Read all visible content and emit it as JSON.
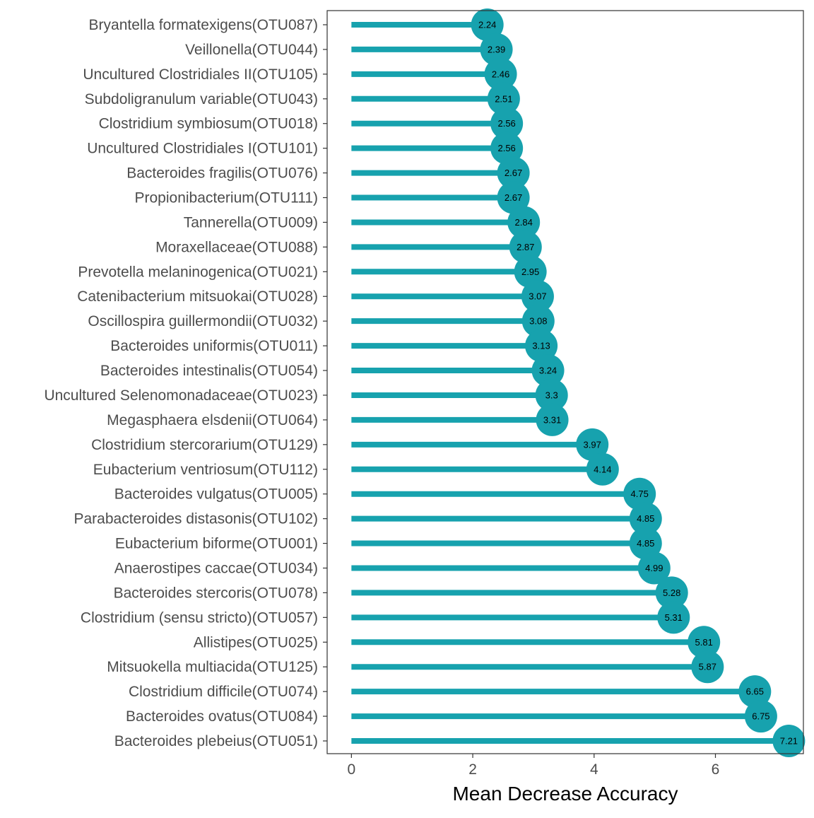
{
  "chart_data": {
    "type": "lollipop",
    "title": "",
    "xlabel": "Mean Decrease Accuracy",
    "ylabel": "",
    "xlim": [
      -0.4,
      7.45
    ],
    "x_ticks": [
      0,
      2,
      4,
      6
    ],
    "grid": false,
    "legend": "none",
    "colors": {
      "series": "#17A2AE",
      "label_text": "#000000",
      "axis_text": "#4D4D4D",
      "axis_title": "#000000",
      "panel_border": "#333333"
    },
    "categories": [
      "Bryantella formatexigens(OTU087)",
      "Veillonella(OTU044)",
      "Uncultured Clostridiales II(OTU105)",
      "Subdoligranulum variable(OTU043)",
      "Clostridium symbiosum(OTU018)",
      "Uncultured Clostridiales I(OTU101)",
      "Bacteroides fragilis(OTU076)",
      "Propionibacterium(OTU111)",
      "Tannerella(OTU009)",
      "Moraxellaceae(OTU088)",
      "Prevotella melaninogenica(OTU021)",
      "Catenibacterium mitsuokai(OTU028)",
      "Oscillospira guillermondii(OTU032)",
      "Bacteroides uniformis(OTU011)",
      "Bacteroides intestinalis(OTU054)",
      "Uncultured Selenomonadaceae(OTU023)",
      "Megasphaera elsdenii(OTU064)",
      "Clostridium stercorarium(OTU129)",
      "Eubacterium ventriosum(OTU112)",
      "Bacteroides vulgatus(OTU005)",
      "Parabacteroides distasonis(OTU102)",
      "Eubacterium biforme(OTU001)",
      "Anaerostipes caccae(OTU034)",
      "Bacteroides stercoris(OTU078)",
      "Clostridium (sensu stricto)(OTU057)",
      "Allistipes(OTU025)",
      "Mitsuokella multiacida(OTU125)",
      "Clostridium difficile(OTU074)",
      "Bacteroides ovatus(OTU084)",
      "Bacteroides plebeius(OTU051)"
    ],
    "values": [
      2.24,
      2.39,
      2.46,
      2.51,
      2.56,
      2.56,
      2.67,
      2.67,
      2.84,
      2.87,
      2.95,
      3.07,
      3.08,
      3.13,
      3.24,
      3.3,
      3.31,
      3.97,
      4.14,
      4.75,
      4.85,
      4.85,
      4.99,
      5.28,
      5.31,
      5.81,
      5.87,
      6.65,
      6.75,
      7.21
    ],
    "value_labels": [
      "2.24",
      "2.39",
      "2.46",
      "2.51",
      "2.56",
      "2.56",
      "2.67",
      "2.67",
      "2.84",
      "2.87",
      "2.95",
      "3.07",
      "3.08",
      "3.13",
      "3.24",
      "3.3",
      "3.31",
      "3.97",
      "4.14",
      "4.75",
      "4.85",
      "4.85",
      "4.99",
      "5.28",
      "5.31",
      "5.81",
      "5.87",
      "6.65",
      "6.75",
      "7.21"
    ]
  }
}
